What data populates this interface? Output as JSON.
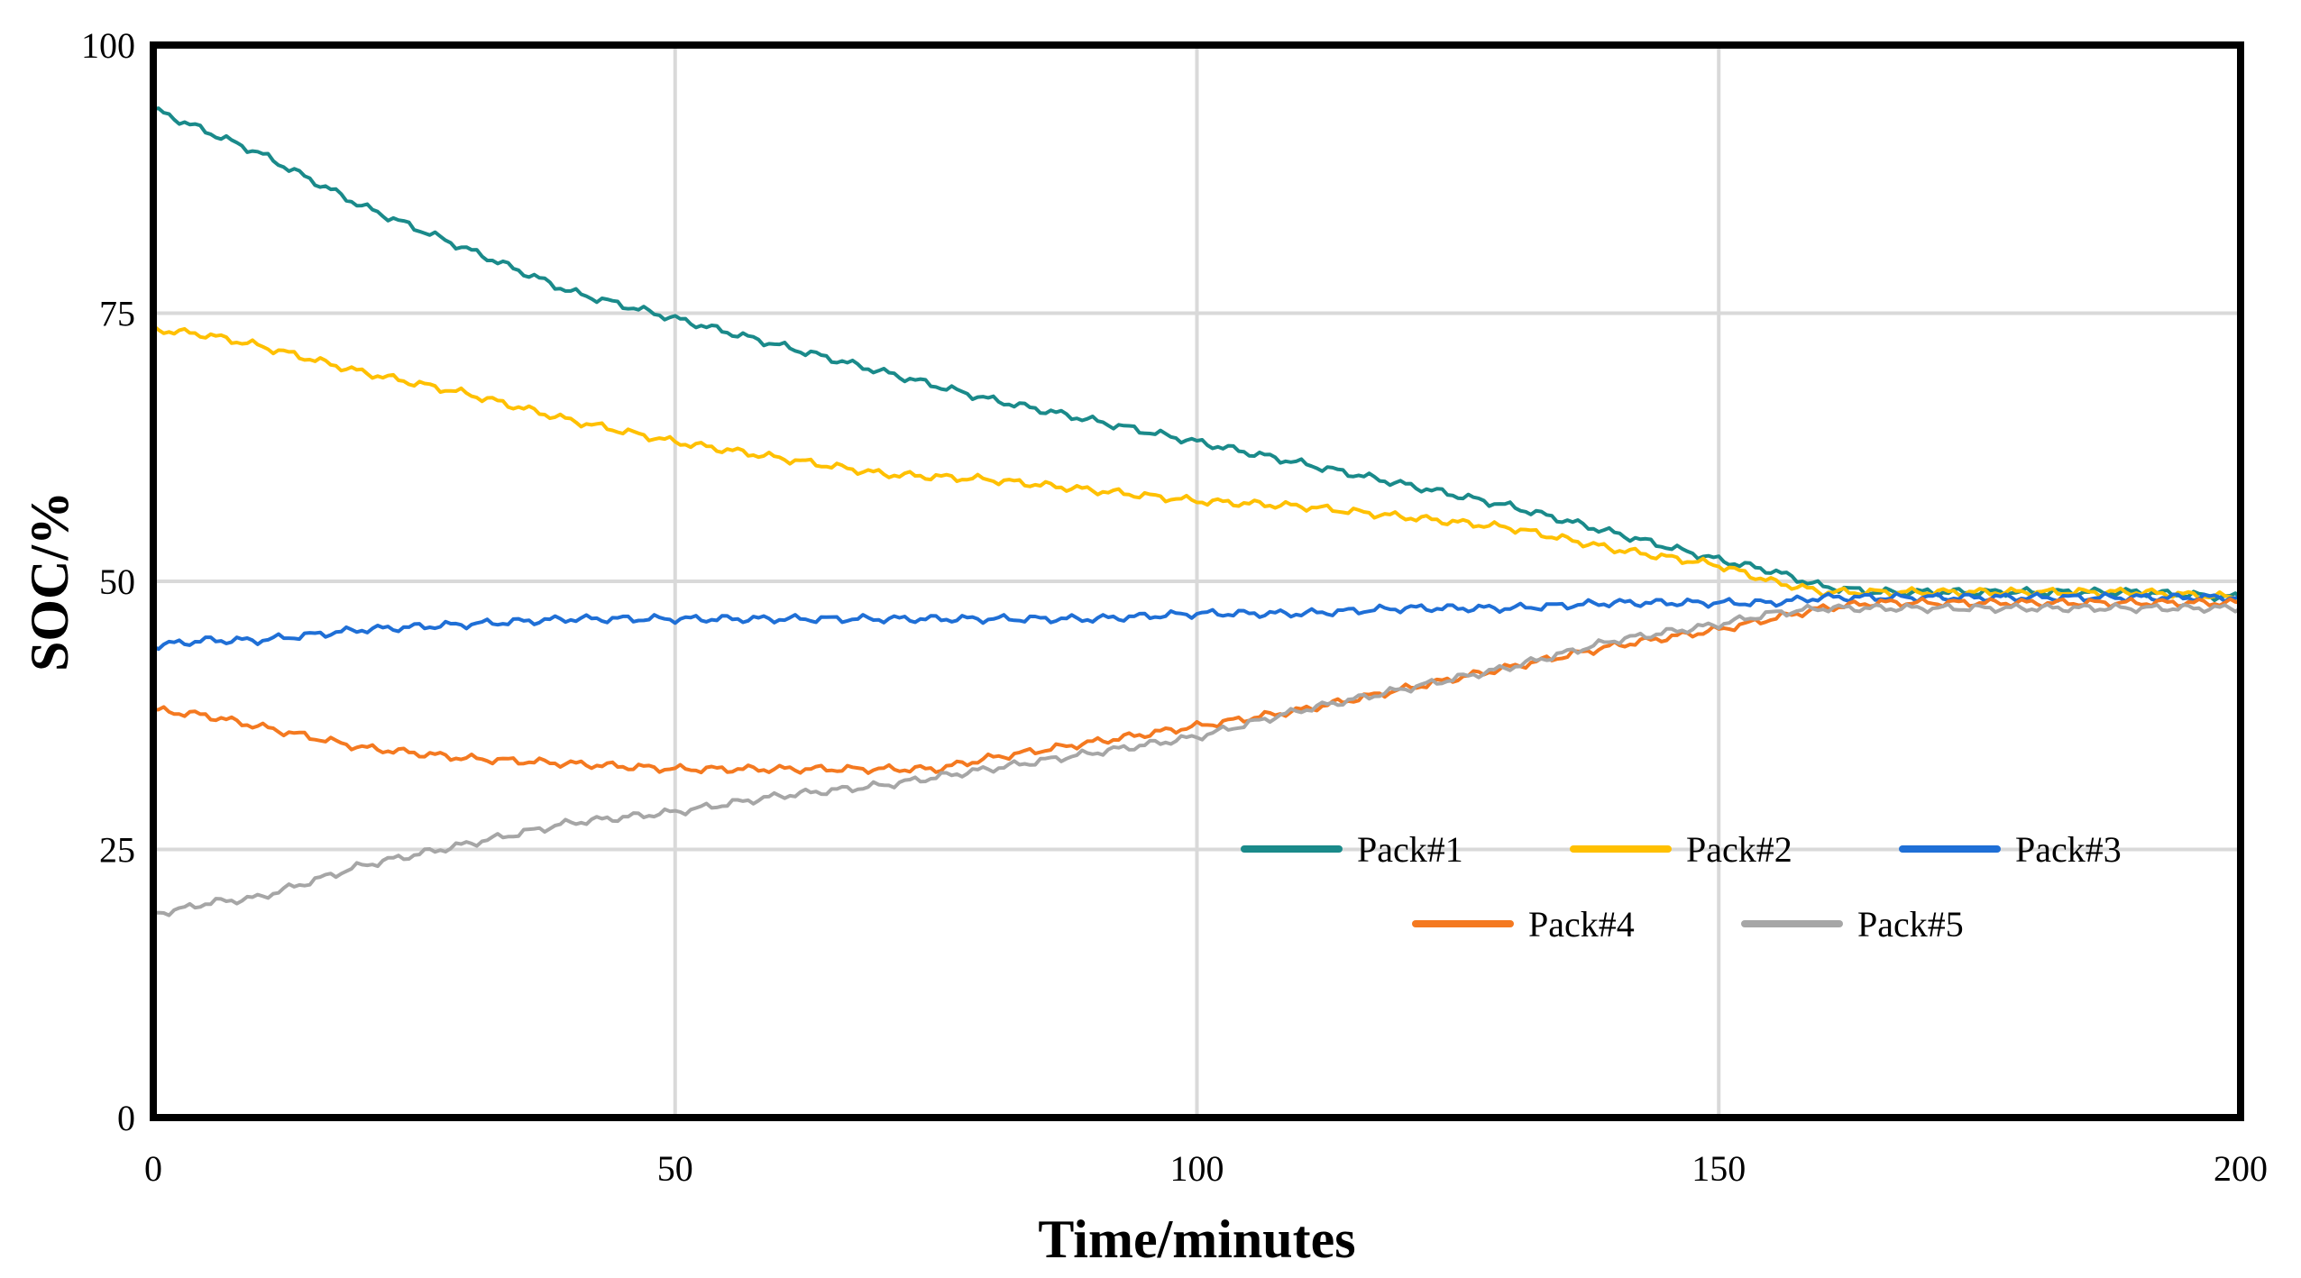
{
  "chart_data": {
    "type": "line",
    "title": "",
    "xlabel": "Time/minutes",
    "ylabel": "SOC/%",
    "xlim": [
      0,
      200
    ],
    "ylim": [
      0,
      100
    ],
    "xticks": [
      0,
      50,
      100,
      150,
      200
    ],
    "yticks": [
      0,
      25,
      50,
      75,
      100
    ],
    "grid": true,
    "legend_position": "lower-right",
    "series": [
      {
        "name": "Pack#1",
        "color": "#1a8a8a",
        "x": [
          0,
          5,
          10,
          20,
          30,
          40,
          50,
          60,
          70,
          80,
          90,
          100,
          110,
          120,
          130,
          140,
          150,
          155,
          160,
          165,
          170,
          180,
          190,
          200
        ],
        "y": [
          94,
          92,
          90,
          85,
          81,
          77,
          74.5,
          72,
          69.5,
          67,
          65,
          63,
          61,
          59,
          57,
          54.5,
          52,
          51,
          49.5,
          49,
          49,
          49,
          49,
          48.5
        ]
      },
      {
        "name": "Pack#2",
        "color": "#ffc000",
        "x": [
          0,
          5,
          10,
          20,
          30,
          40,
          50,
          60,
          70,
          80,
          90,
          100,
          110,
          120,
          130,
          140,
          150,
          155,
          160,
          165,
          170,
          180,
          190,
          200
        ],
        "y": [
          73.5,
          73,
          72,
          69.5,
          67.5,
          65,
          63,
          61.5,
          60,
          59.5,
          58.5,
          57.5,
          57,
          56,
          55,
          53,
          51.5,
          50,
          49,
          49,
          49,
          49,
          49,
          48.5
        ]
      },
      {
        "name": "Pack#3",
        "color": "#1f6fd6",
        "x": [
          0,
          5,
          10,
          20,
          30,
          40,
          50,
          60,
          70,
          80,
          90,
          100,
          110,
          120,
          130,
          140,
          150,
          155,
          160,
          165,
          170,
          180,
          190,
          200
        ],
        "y": [
          44,
          44.5,
          44.5,
          45.5,
          46,
          46.5,
          46.5,
          46.5,
          46.5,
          46.5,
          46.5,
          47,
          47,
          47.5,
          47.5,
          48,
          48,
          48,
          48.5,
          48.5,
          48.5,
          48.5,
          48.5,
          48.5
        ]
      },
      {
        "name": "Pack#4",
        "color": "#f47920",
        "x": [
          0,
          5,
          10,
          15,
          20,
          30,
          40,
          50,
          60,
          70,
          75,
          80,
          90,
          100,
          110,
          120,
          130,
          140,
          150,
          155,
          160,
          165,
          170,
          180,
          190,
          200
        ],
        "y": [
          38,
          37.5,
          36.5,
          35.5,
          34.5,
          33.5,
          33,
          32.5,
          32.5,
          32.5,
          32.5,
          33.5,
          35,
          36.5,
          38,
          40,
          42,
          44,
          45.5,
          46.5,
          47.5,
          48,
          48,
          48,
          48,
          48
        ]
      },
      {
        "name": "Pack#5",
        "color": "#a6a6a6",
        "x": [
          0,
          3,
          5,
          10,
          15,
          20,
          30,
          40,
          50,
          60,
          70,
          80,
          90,
          100,
          110,
          120,
          130,
          140,
          150,
          155,
          160,
          165,
          170,
          180,
          190,
          200
        ],
        "y": [
          19,
          19.5,
          20,
          20.5,
          22,
          23.5,
          25.5,
          27.5,
          28.5,
          30,
          31,
          32.5,
          34,
          35.5,
          38,
          40,
          42,
          44.5,
          46,
          47,
          47.5,
          47.5,
          47.5,
          47.5,
          47.5,
          47.5
        ]
      }
    ]
  }
}
